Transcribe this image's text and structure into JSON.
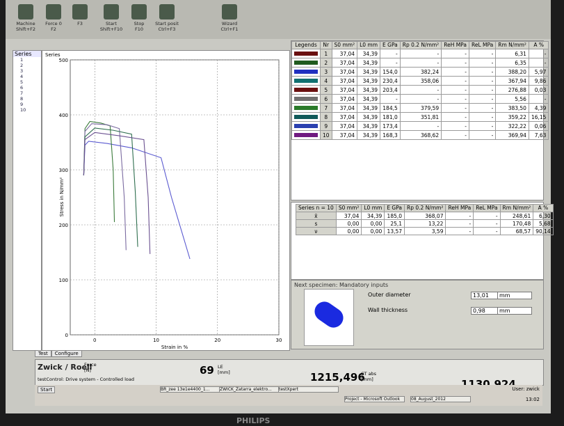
{
  "toolbar": {
    "buttons": [
      {
        "label": "Machine",
        "shortcut": "Shift+F2"
      },
      {
        "label": "Force 0",
        "shortcut": "F2"
      },
      {
        "shortcut": "F3"
      },
      {
        "label": "Start",
        "shortcut": "Shift+F10"
      },
      {
        "label": "Stop",
        "shortcut": "F10"
      },
      {
        "label": "Start posit",
        "shortcut": "Ctrl+F3"
      },
      {
        "label": "Wizard",
        "shortcut": "Ctrl+F1"
      }
    ]
  },
  "tree": {
    "title": "Series",
    "items": [
      "1",
      "2",
      "3",
      "4",
      "5",
      "6",
      "7",
      "8",
      "9",
      "10"
    ]
  },
  "chart": {
    "title": "Series",
    "xlabel": "Strain in %",
    "ylabel": "Stress in N/mm²",
    "xlim": [
      -4,
      30
    ],
    "ylim": [
      0,
      500
    ],
    "xticks": [
      0,
      10,
      20,
      30
    ],
    "yticks": [
      0,
      100,
      200,
      300,
      400,
      500
    ],
    "grid": true,
    "series": [
      {
        "color": "#5a5ad0",
        "x": [
          -1.8,
          -1.6,
          -1,
          2,
          6,
          10.8,
          12.5,
          15.5
        ],
        "y": [
          290,
          345,
          352,
          348,
          340,
          322,
          250,
          138
        ]
      },
      {
        "color": "#3a7a3a",
        "x": [
          -1.8,
          -1.6,
          -0.8,
          1,
          2.5,
          3,
          3.2
        ],
        "y": [
          290,
          375,
          388,
          385,
          380,
          300,
          205
        ]
      },
      {
        "color": "#7a6aa0",
        "x": [
          -1.8,
          -1.6,
          -0.5,
          2,
          4,
          4.8,
          5.1
        ],
        "y": [
          290,
          370,
          384,
          382,
          375,
          250,
          154
        ]
      },
      {
        "color": "#2e6e4e",
        "x": [
          -1.8,
          -1.6,
          0,
          3,
          6,
          6.6,
          7
        ],
        "y": [
          290,
          360,
          376,
          372,
          365,
          260,
          160
        ]
      },
      {
        "color": "#6a5090",
        "x": [
          -1.8,
          -1.6,
          0,
          4,
          8,
          8.7,
          9
        ],
        "y": [
          290,
          355,
          368,
          362,
          355,
          250,
          147
        ]
      }
    ]
  },
  "results": {
    "headers": [
      "Legends",
      "Nr",
      "S0 mm²",
      "L0 mm",
      "E GPa",
      "Rp 0.2 N/mm²",
      "ReH MPa",
      "ReL MPa",
      "Rm N/mm²",
      "A %"
    ],
    "rows": [
      {
        "color": "#6a1010",
        "cells": [
          "1",
          "37,04",
          "34,39",
          "-",
          "-",
          "-",
          "-",
          "6,31",
          "-"
        ]
      },
      {
        "color": "#1f5a1f",
        "cells": [
          "2",
          "37,04",
          "34,39",
          "-",
          "-",
          "-",
          "-",
          "6,35",
          "-"
        ]
      },
      {
        "color": "#2030c0",
        "cells": [
          "3",
          "37,04",
          "34,39",
          "154,0",
          "382,24",
          "-",
          "-",
          "388,20",
          "5,97"
        ]
      },
      {
        "color": "#107070",
        "cells": [
          "4",
          "37,04",
          "34,39",
          "230,4",
          "358,06",
          "-",
          "-",
          "367,94",
          "9,86"
        ]
      },
      {
        "color": "#6a1010",
        "cells": [
          "5",
          "37,04",
          "34,39",
          "203,4",
          "-",
          "-",
          "-",
          "276,88",
          "0,03"
        ]
      },
      {
        "color": "#707070",
        "cells": [
          "6",
          "37,04",
          "34,39",
          "-",
          "-",
          "-",
          "-",
          "5,56",
          "-"
        ]
      },
      {
        "color": "#2a7a2a",
        "cells": [
          "7",
          "37,04",
          "34,39",
          "184,5",
          "379,59",
          "-",
          "-",
          "383,50",
          "4,39"
        ]
      },
      {
        "color": "#105a5a",
        "cells": [
          "8",
          "37,04",
          "34,39",
          "181,0",
          "351,81",
          "-",
          "-",
          "359,22",
          "16,15"
        ]
      },
      {
        "color": "#2a40b0",
        "cells": [
          "9",
          "37,04",
          "34,39",
          "173,4",
          "-",
          "-",
          "-",
          "322,22",
          "0,06"
        ]
      },
      {
        "color": "#701a80",
        "cells": [
          "10",
          "37,04",
          "34,39",
          "168,3",
          "368,62",
          "-",
          "-",
          "369,94",
          "7,63"
        ]
      }
    ]
  },
  "statistics": {
    "headers": [
      "Series n = 10",
      "S0 mm²",
      "L0 mm",
      "E GPa",
      "Rp 0.2 N/mm²",
      "ReH MPa",
      "ReL MPa",
      "Rm N/mm²",
      "A %"
    ],
    "rows": [
      [
        "x̄",
        "37,04",
        "34,39",
        "185,0",
        "368,07",
        "-",
        "-",
        "248,61",
        "6,30"
      ],
      [
        "s",
        "0,00",
        "0,00",
        "25,1",
        "13,22",
        "-",
        "-",
        "170,48",
        "5,68"
      ],
      [
        "ν",
        "0,00",
        "0,00",
        "13,57",
        "3,59",
        "-",
        "-",
        "68,57",
        "90,14"
      ]
    ]
  },
  "next_specimen": {
    "title": "Next specimen: Mandatory inputs",
    "inputs": [
      {
        "label": "Outer diameter",
        "value": "13,01",
        "unit": "mm"
      },
      {
        "label": "Wall thickness",
        "value": "0,98",
        "unit": "mm"
      }
    ]
  },
  "tabs": [
    "Test",
    "Configure"
  ],
  "status": {
    "brand": "Zwick / Roell",
    "force_label": "Force [N]",
    "force": "69",
    "le_label": "LE [mm]",
    "le": "1215,496",
    "ct_label": "CT abs [mm]",
    "ct": "1130,924",
    "message": "testControl: Drive system - Controlled load"
  },
  "taskbar": {
    "start": "Start",
    "items": [
      "BR_zee 13e1e4400_1...",
      "ZWICK_Zatarra_elektro...",
      "testXpert",
      "Project - Microsoft Outlook",
      "08_August_2012"
    ],
    "user": "User: zwick",
    "clock": "13:02"
  },
  "bezel": "PHILIPS"
}
